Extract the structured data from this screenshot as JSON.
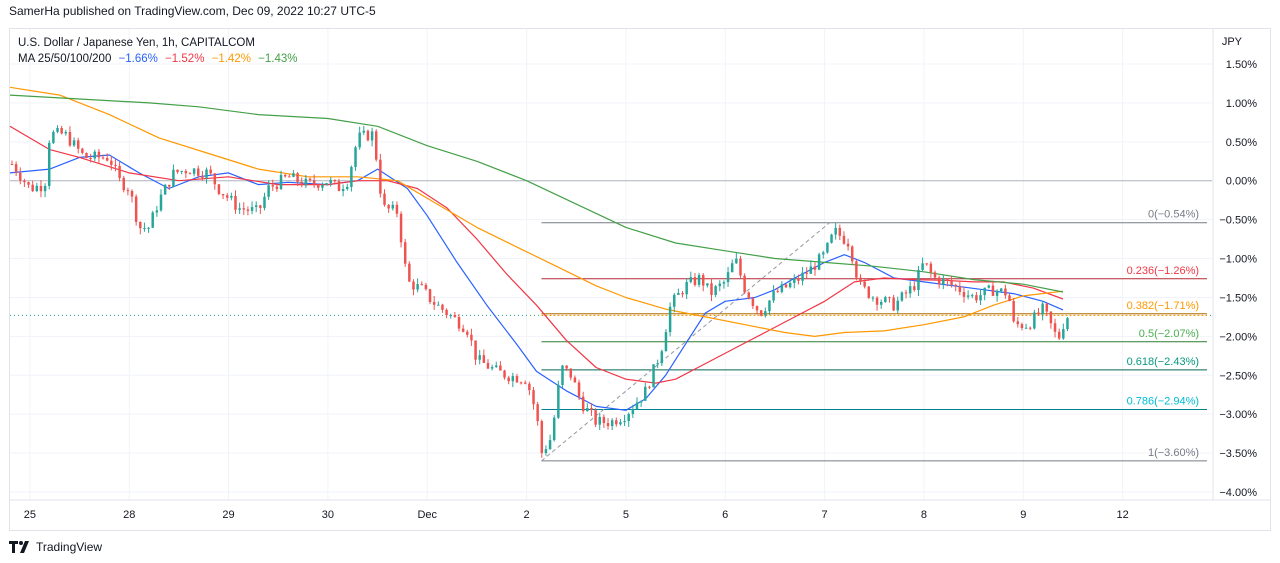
{
  "header": {
    "published_by": "SamerHa published on TradingView.com, Dec 09, 2022 10:27 UTC-5"
  },
  "legend": {
    "symbol": "U.S. Dollar / Japanese Yen, 1h, CAPITALCOM",
    "ma_label": "MA 25/50/100/200",
    "ma_values": [
      {
        "text": "−1.66%",
        "color": "#2962ff"
      },
      {
        "text": "−1.52%",
        "color": "#f23645"
      },
      {
        "text": "−1.42%",
        "color": "#ff9800"
      },
      {
        "text": "−1.43%",
        "color": "#43a047"
      }
    ]
  },
  "footer": {
    "brand": "TradingView"
  },
  "chart_data": {
    "type": "candlestick",
    "title": "U.S. Dollar / Japanese Yen, 1h, CAPITALCOM",
    "y_unit_label": "JPY",
    "ylim": [
      -4.0,
      1.75
    ],
    "xlim": [
      -0.2,
      11.9
    ],
    "y_ticks": [
      {
        "v": 1.5,
        "label": "1.50%"
      },
      {
        "v": 1.0,
        "label": "1.00%"
      },
      {
        "v": 0.5,
        "label": "0.50%"
      },
      {
        "v": 0.0,
        "label": "0.00%"
      },
      {
        "v": -0.5,
        "label": "−0.50%"
      },
      {
        "v": -1.0,
        "label": "−1.00%"
      },
      {
        "v": -1.5,
        "label": "−1.50%"
      },
      {
        "v": -2.0,
        "label": "−2.00%"
      },
      {
        "v": -2.5,
        "label": "−2.50%"
      },
      {
        "v": -3.0,
        "label": "−3.00%"
      },
      {
        "v": -3.5,
        "label": "−3.50%"
      },
      {
        "v": -4.0,
        "label": "−4.00%"
      }
    ],
    "x_ticks": [
      {
        "t": 0,
        "label": "25"
      },
      {
        "t": 1,
        "label": "28"
      },
      {
        "t": 2,
        "label": "29"
      },
      {
        "t": 3,
        "label": "30"
      },
      {
        "t": 4,
        "label": "Dec"
      },
      {
        "t": 5,
        "label": "2"
      },
      {
        "t": 6,
        "label": "5"
      },
      {
        "t": 7,
        "label": "6"
      },
      {
        "t": 8,
        "label": "7"
      },
      {
        "t": 9,
        "label": "8"
      },
      {
        "t": 10,
        "label": "9"
      },
      {
        "t": 11,
        "label": "12"
      }
    ],
    "zero_line": 0.0,
    "current_price": -1.73,
    "candles_per_day": 24,
    "close_path": [
      [
        -0.2,
        0.25
      ],
      [
        0.0,
        -0.1
      ],
      [
        0.15,
        -0.05
      ],
      [
        0.2,
        0.6
      ],
      [
        0.35,
        0.6
      ],
      [
        0.55,
        0.3
      ],
      [
        0.8,
        0.3
      ],
      [
        0.9,
        0.0
      ],
      [
        1.0,
        -0.1
      ],
      [
        1.1,
        -0.6
      ],
      [
        1.2,
        -0.6
      ],
      [
        1.3,
        -0.25
      ],
      [
        1.45,
        0.1
      ],
      [
        1.6,
        0.15
      ],
      [
        1.8,
        0.1
      ],
      [
        1.9,
        -0.1
      ],
      [
        2.1,
        -0.35
      ],
      [
        2.3,
        -0.4
      ],
      [
        2.4,
        -0.1
      ],
      [
        2.6,
        0.05
      ],
      [
        2.8,
        -0.05
      ],
      [
        3.0,
        0.0
      ],
      [
        3.1,
        -0.1
      ],
      [
        3.2,
        0.0
      ],
      [
        3.3,
        0.55
      ],
      [
        3.45,
        0.6
      ],
      [
        3.5,
        0.2
      ],
      [
        3.55,
        -0.35
      ],
      [
        3.7,
        -0.4
      ],
      [
        3.75,
        -0.85
      ],
      [
        3.8,
        -1.3
      ],
      [
        3.95,
        -1.4
      ],
      [
        4.05,
        -1.55
      ],
      [
        4.2,
        -1.7
      ],
      [
        4.4,
        -1.9
      ],
      [
        4.5,
        -2.3
      ],
      [
        4.7,
        -2.45
      ],
      [
        4.8,
        -2.5
      ],
      [
        5.0,
        -2.55
      ],
      [
        5.1,
        -3.0
      ],
      [
        5.15,
        -3.5
      ],
      [
        5.25,
        -3.3
      ],
      [
        5.35,
        -2.4
      ],
      [
        5.45,
        -2.5
      ],
      [
        5.55,
        -2.85
      ],
      [
        5.7,
        -3.1
      ],
      [
        5.85,
        -3.1
      ],
      [
        6.0,
        -3.0
      ],
      [
        6.2,
        -2.7
      ],
      [
        6.35,
        -2.2
      ],
      [
        6.45,
        -1.6
      ],
      [
        6.6,
        -1.35
      ],
      [
        6.75,
        -1.25
      ],
      [
        6.85,
        -1.45
      ],
      [
        7.0,
        -1.3
      ],
      [
        7.1,
        -1.0
      ],
      [
        7.2,
        -1.4
      ],
      [
        7.35,
        -1.7
      ],
      [
        7.5,
        -1.45
      ],
      [
        7.7,
        -1.3
      ],
      [
        7.85,
        -1.15
      ],
      [
        8.0,
        -0.95
      ],
      [
        8.1,
        -0.65
      ],
      [
        8.25,
        -0.8
      ],
      [
        8.35,
        -1.35
      ],
      [
        8.5,
        -1.5
      ],
      [
        8.7,
        -1.6
      ],
      [
        8.9,
        -1.35
      ],
      [
        9.0,
        -1.05
      ],
      [
        9.1,
        -1.25
      ],
      [
        9.3,
        -1.35
      ],
      [
        9.5,
        -1.5
      ],
      [
        9.7,
        -1.4
      ],
      [
        9.85,
        -1.45
      ],
      [
        9.9,
        -1.85
      ],
      [
        10.05,
        -1.85
      ],
      [
        10.2,
        -1.65
      ],
      [
        10.35,
        -2.05
      ],
      [
        10.4,
        -1.85
      ],
      [
        10.45,
        -1.73
      ]
    ],
    "series": [
      {
        "name": "MA 25",
        "color": "#2962ff",
        "last_value": "−1.66%",
        "points": [
          [
            -0.2,
            0.1
          ],
          [
            0.2,
            0.15
          ],
          [
            0.5,
            0.3
          ],
          [
            0.8,
            0.33
          ],
          [
            1.1,
            0.1
          ],
          [
            1.4,
            -0.1
          ],
          [
            1.7,
            0.05
          ],
          [
            2.0,
            0.1
          ],
          [
            2.3,
            -0.05
          ],
          [
            2.6,
            -0.02
          ],
          [
            3.0,
            -0.05
          ],
          [
            3.3,
            0.0
          ],
          [
            3.5,
            0.15
          ],
          [
            3.8,
            -0.1
          ],
          [
            4.0,
            -0.45
          ],
          [
            4.3,
            -1.05
          ],
          [
            4.6,
            -1.6
          ],
          [
            4.9,
            -2.1
          ],
          [
            5.1,
            -2.45
          ],
          [
            5.4,
            -2.7
          ],
          [
            5.7,
            -2.9
          ],
          [
            6.0,
            -2.95
          ],
          [
            6.2,
            -2.8
          ],
          [
            6.4,
            -2.5
          ],
          [
            6.6,
            -2.1
          ],
          [
            6.8,
            -1.7
          ],
          [
            7.0,
            -1.55
          ],
          [
            7.3,
            -1.5
          ],
          [
            7.5,
            -1.4
          ],
          [
            7.7,
            -1.25
          ],
          [
            8.0,
            -1.05
          ],
          [
            8.2,
            -0.95
          ],
          [
            8.4,
            -1.05
          ],
          [
            8.7,
            -1.25
          ],
          [
            9.0,
            -1.3
          ],
          [
            9.3,
            -1.35
          ],
          [
            9.6,
            -1.4
          ],
          [
            9.9,
            -1.45
          ],
          [
            10.2,
            -1.55
          ],
          [
            10.4,
            -1.66
          ]
        ]
      },
      {
        "name": "MA 50",
        "color": "#f23645",
        "last_value": "−1.52%",
        "points": [
          [
            -0.2,
            0.7
          ],
          [
            0.2,
            0.4
          ],
          [
            0.5,
            0.3
          ],
          [
            1.0,
            0.1
          ],
          [
            1.5,
            0.0
          ],
          [
            2.0,
            0.05
          ],
          [
            2.5,
            -0.05
          ],
          [
            3.0,
            -0.05
          ],
          [
            3.3,
            0.0
          ],
          [
            3.6,
            0.0
          ],
          [
            3.9,
            -0.1
          ],
          [
            4.2,
            -0.35
          ],
          [
            4.5,
            -0.75
          ],
          [
            4.8,
            -1.2
          ],
          [
            5.1,
            -1.6
          ],
          [
            5.4,
            -2.05
          ],
          [
            5.7,
            -2.4
          ],
          [
            6.0,
            -2.55
          ],
          [
            6.3,
            -2.6
          ],
          [
            6.5,
            -2.55
          ],
          [
            6.8,
            -2.35
          ],
          [
            7.1,
            -2.15
          ],
          [
            7.4,
            -1.95
          ],
          [
            7.7,
            -1.75
          ],
          [
            8.0,
            -1.55
          ],
          [
            8.3,
            -1.3
          ],
          [
            8.6,
            -1.25
          ],
          [
            8.9,
            -1.27
          ],
          [
            9.2,
            -1.28
          ],
          [
            9.5,
            -1.3
          ],
          [
            9.8,
            -1.3
          ],
          [
            10.1,
            -1.38
          ],
          [
            10.4,
            -1.52
          ]
        ]
      },
      {
        "name": "MA 100",
        "color": "#ff9800",
        "last_value": "−1.42%",
        "points": [
          [
            -0.2,
            1.2
          ],
          [
            0.3,
            1.1
          ],
          [
            0.8,
            0.85
          ],
          [
            1.3,
            0.55
          ],
          [
            1.8,
            0.35
          ],
          [
            2.3,
            0.15
          ],
          [
            2.8,
            0.05
          ],
          [
            3.3,
            0.05
          ],
          [
            3.7,
            0.0
          ],
          [
            4.1,
            -0.3
          ],
          [
            4.5,
            -0.6
          ],
          [
            4.9,
            -0.85
          ],
          [
            5.3,
            -1.1
          ],
          [
            5.7,
            -1.35
          ],
          [
            6.0,
            -1.5
          ],
          [
            6.4,
            -1.65
          ],
          [
            6.8,
            -1.75
          ],
          [
            7.2,
            -1.85
          ],
          [
            7.6,
            -1.95
          ],
          [
            7.9,
            -2.0
          ],
          [
            8.2,
            -1.95
          ],
          [
            8.6,
            -1.93
          ],
          [
            9.0,
            -1.85
          ],
          [
            9.4,
            -1.75
          ],
          [
            9.7,
            -1.6
          ],
          [
            10.0,
            -1.48
          ],
          [
            10.4,
            -1.42
          ]
        ]
      },
      {
        "name": "MA 200",
        "color": "#43a047",
        "last_value": "−1.43%",
        "points": [
          [
            -0.2,
            1.1
          ],
          [
            0.5,
            1.05
          ],
          [
            1.2,
            1.0
          ],
          [
            1.7,
            0.95
          ],
          [
            2.3,
            0.85
          ],
          [
            3.0,
            0.8
          ],
          [
            3.5,
            0.7
          ],
          [
            4.0,
            0.45
          ],
          [
            4.5,
            0.25
          ],
          [
            5.0,
            0.0
          ],
          [
            5.5,
            -0.3
          ],
          [
            6.0,
            -0.6
          ],
          [
            6.5,
            -0.8
          ],
          [
            7.0,
            -0.9
          ],
          [
            7.5,
            -1.0
          ],
          [
            8.0,
            -1.05
          ],
          [
            8.5,
            -1.1
          ],
          [
            9.0,
            -1.17
          ],
          [
            9.5,
            -1.27
          ],
          [
            10.0,
            -1.33
          ],
          [
            10.4,
            -1.43
          ]
        ]
      }
    ],
    "fibonacci": {
      "x_start": 5.15,
      "x_end": 11.85,
      "levels": [
        {
          "ratio": "0",
          "value": -0.54,
          "label": "0(−0.54%)",
          "color": "#787b86",
          "line_color": "#787b86"
        },
        {
          "ratio": "0.236",
          "value": -1.26,
          "label": "0.236(−1.26%)",
          "color": "#f23645",
          "line_color": "#b22833"
        },
        {
          "ratio": "0.382",
          "value": -1.71,
          "label": "0.382(−1.71%)",
          "color": "#ff9800",
          "line_color": "#b26b00"
        },
        {
          "ratio": "0.5",
          "value": -2.07,
          "label": "0.5(−2.07%)",
          "color": "#4caf50",
          "line_color": "#2e7d32"
        },
        {
          "ratio": "0.618",
          "value": -2.43,
          "label": "0.618(−2.43%)",
          "color": "#089981",
          "line_color": "#056656"
        },
        {
          "ratio": "0.786",
          "value": -2.94,
          "label": "0.786(−2.94%)",
          "color": "#00bcd4",
          "line_color": "#00838f"
        },
        {
          "ratio": "1",
          "value": -3.6,
          "label": "1(−3.60%)",
          "color": "#787b86",
          "line_color": "#787b86"
        }
      ],
      "trend_line": [
        [
          5.15,
          -3.6
        ],
        [
          8.05,
          -0.54
        ]
      ]
    },
    "colors": {
      "up": "#26a69a",
      "down": "#ef5350",
      "grid": "#f0f3fa",
      "axis_text": "#131722"
    }
  }
}
